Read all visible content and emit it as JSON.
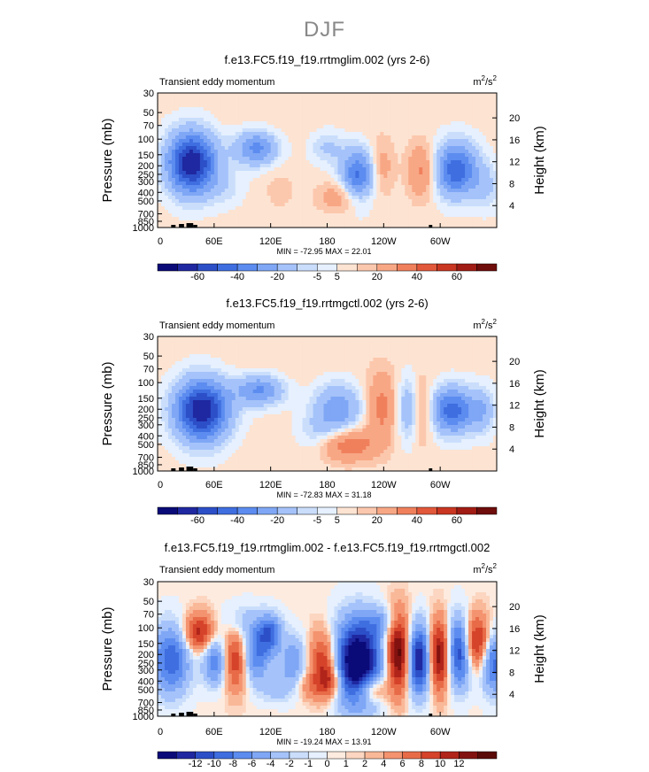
{
  "main_title": "DJF",
  "chart_data": [
    {
      "type": "heatmap",
      "title": "f.e13.FC5.f19_f19.rrtmglim.002 (yrs 2-6)",
      "variable": "Transient eddy momentum",
      "units": "m²/s²",
      "units_base": "m",
      "units_sup1": "2",
      "units_mid": "/s",
      "units_sup2": "2",
      "ylabel": "Pressure (mb)",
      "y2label": "Height (km)",
      "x_ticks": [
        "0",
        "60E",
        "120E",
        "180",
        "120W",
        "60W"
      ],
      "y_ticks": [
        "30",
        "50",
        "70",
        "100",
        "150",
        "200",
        "250",
        "300",
        "400",
        "500",
        "700",
        "850",
        "1000"
      ],
      "y2_ticks": [
        "20",
        "16",
        "12",
        "8",
        "4"
      ],
      "stats": "MIN = -72.95   MAX =  22.01",
      "colorbar_labels": [
        "-60",
        "-40",
        "-20",
        "-5",
        "5",
        "20",
        "40",
        "60"
      ],
      "levels": [
        -70,
        -60,
        -50,
        -40,
        -30,
        -20,
        -10,
        -5,
        0,
        5,
        10,
        20,
        30,
        40,
        50,
        60,
        70
      ],
      "min": -72.95,
      "max": 22.01
    },
    {
      "type": "heatmap",
      "title": "f.e13.FC5.f19_f19.rrtmgctl.002 (yrs 2-6)",
      "variable": "Transient eddy momentum",
      "units": "m²/s²",
      "units_base": "m",
      "units_sup1": "2",
      "units_mid": "/s",
      "units_sup2": "2",
      "ylabel": "Pressure (mb)",
      "y2label": "Height (km)",
      "x_ticks": [
        "0",
        "60E",
        "120E",
        "180",
        "120W",
        "60W"
      ],
      "y_ticks": [
        "30",
        "50",
        "70",
        "100",
        "150",
        "200",
        "250",
        "300",
        "400",
        "500",
        "700",
        "850",
        "1000"
      ],
      "y2_ticks": [
        "20",
        "16",
        "12",
        "8",
        "4"
      ],
      "stats": "MIN = -72.83   MAX =  31.18",
      "colorbar_labels": [
        "-60",
        "-40",
        "-20",
        "-5",
        "5",
        "20",
        "40",
        "60"
      ],
      "levels": [
        -70,
        -60,
        -50,
        -40,
        -30,
        -20,
        -10,
        -5,
        0,
        5,
        10,
        20,
        30,
        40,
        50,
        60,
        70
      ],
      "min": -72.83,
      "max": 31.18
    },
    {
      "type": "heatmap",
      "title": "f.e13.FC5.f19_f19.rrtmglim.002 - f.e13.FC5.f19_f19.rrtmgctl.002",
      "variable": "Transient eddy momentum",
      "units": "m²/s²",
      "units_base": "m",
      "units_sup1": "2",
      "units_mid": "/s",
      "units_sup2": "2",
      "ylabel": "Pressure (mb)",
      "y2label": "Height (km)",
      "x_ticks": [
        "0",
        "60E",
        "120E",
        "180",
        "120W",
        "60W"
      ],
      "y_ticks": [
        "30",
        "50",
        "70",
        "100",
        "150",
        "200",
        "250",
        "300",
        "400",
        "500",
        "700",
        "850",
        "1000"
      ],
      "y2_ticks": [
        "20",
        "16",
        "12",
        "8",
        "4"
      ],
      "stats": "MIN = -19.24   MAX =  13.91",
      "colorbar_labels": [
        "-12",
        "-10",
        "-8",
        "-6",
        "-4",
        "-2",
        "-1",
        "0",
        "1",
        "2",
        "4",
        "6",
        "8",
        "10",
        "12"
      ],
      "levels": [
        -14,
        -12,
        -10,
        -8,
        -6,
        -4,
        -2,
        -1,
        0,
        0.5,
        1,
        2,
        4,
        6,
        8,
        10,
        12,
        14
      ],
      "min": -19.24,
      "max": 13.91
    }
  ]
}
